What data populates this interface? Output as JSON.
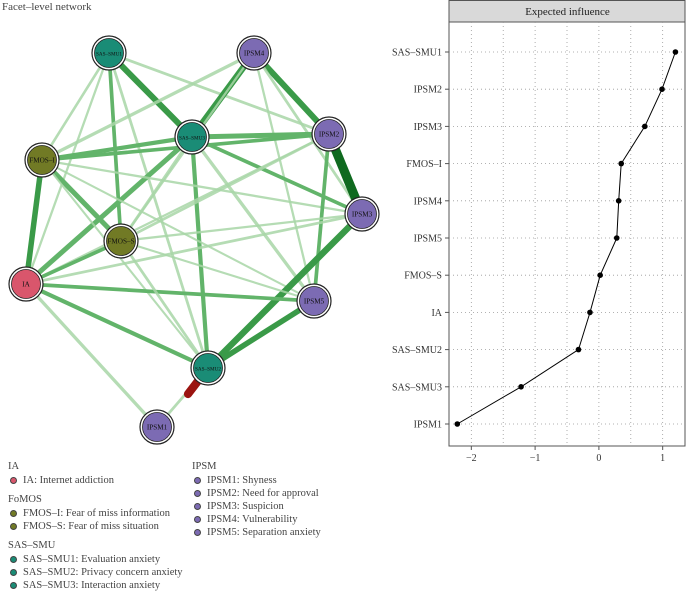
{
  "network": {
    "title": "Facet–level network",
    "node_colors": {
      "IA": "#d9566c",
      "FoMOS": "#717a25",
      "SAS-SMU": "#1a8c76",
      "IPSM": "#7c6bb3"
    },
    "nodes": [
      {
        "id": "SAS-SMU1",
        "label": "SAS–SMU1",
        "group": "SAS-SMU"
      },
      {
        "id": "IPSM4",
        "label": "IPSM4",
        "group": "IPSM"
      },
      {
        "id": "SAS-SMU3",
        "label": "SAS–SMU3",
        "group": "SAS-SMU"
      },
      {
        "id": "IPSM2",
        "label": "IPSM2",
        "group": "IPSM"
      },
      {
        "id": "FMOS-I",
        "label": "FMOS–I",
        "group": "FoMOS"
      },
      {
        "id": "IPSM3",
        "label": "IPSM3",
        "group": "IPSM"
      },
      {
        "id": "FMOS-S",
        "label": "FMOS–S",
        "group": "FoMOS"
      },
      {
        "id": "IA",
        "label": "IA",
        "group": "IA"
      },
      {
        "id": "IPSM5",
        "label": "IPSM5",
        "group": "IPSM"
      },
      {
        "id": "SAS-SMU2",
        "label": "SAS–SMU2",
        "group": "SAS-SMU"
      },
      {
        "id": "IPSM1",
        "label": "IPSM1",
        "group": "IPSM"
      }
    ],
    "edges": [
      {
        "from": "SAS-SMU1",
        "to": "SAS-SMU3",
        "weight": 0.55,
        "sign": "positive"
      },
      {
        "from": "SAS-SMU1",
        "to": "FMOS-I",
        "weight": 0.18,
        "sign": "positive"
      },
      {
        "from": "SAS-SMU1",
        "to": "FMOS-S",
        "weight": 0.3,
        "sign": "positive"
      },
      {
        "from": "SAS-SMU1",
        "to": "IA",
        "weight": 0.15,
        "sign": "positive"
      },
      {
        "from": "SAS-SMU1",
        "to": "IPSM2",
        "weight": 0.2,
        "sign": "positive"
      },
      {
        "from": "SAS-SMU1",
        "to": "SAS-SMU2",
        "weight": 0.2,
        "sign": "positive"
      },
      {
        "from": "IPSM4",
        "to": "SAS-SMU3",
        "weight": 0.6,
        "sign": "positive"
      },
      {
        "from": "IPSM4",
        "to": "IPSM2",
        "weight": 0.55,
        "sign": "positive"
      },
      {
        "from": "IPSM4",
        "to": "FMOS-I",
        "weight": 0.25,
        "sign": "positive"
      },
      {
        "from": "IPSM4",
        "to": "IPSM3",
        "weight": 0.2,
        "sign": "positive"
      },
      {
        "from": "IPSM4",
        "to": "IPSM5",
        "weight": 0.15,
        "sign": "positive"
      },
      {
        "from": "IPSM4",
        "to": "FMOS-S",
        "weight": 0.15,
        "sign": "positive"
      },
      {
        "from": "SAS-SMU3",
        "to": "IPSM2",
        "weight": 0.45,
        "sign": "positive"
      },
      {
        "from": "SAS-SMU3",
        "to": "FMOS-I",
        "weight": 0.35,
        "sign": "positive"
      },
      {
        "from": "SAS-SMU3",
        "to": "IA",
        "weight": 0.45,
        "sign": "positive"
      },
      {
        "from": "SAS-SMU3",
        "to": "IPSM3",
        "weight": 0.3,
        "sign": "positive"
      },
      {
        "from": "SAS-SMU3",
        "to": "IPSM5",
        "weight": 0.25,
        "sign": "positive"
      },
      {
        "from": "SAS-SMU3",
        "to": "SAS-SMU2",
        "weight": 0.35,
        "sign": "positive"
      },
      {
        "from": "SAS-SMU3",
        "to": "FMOS-S",
        "weight": 0.2,
        "sign": "positive"
      },
      {
        "from": "FMOS-I",
        "to": "FMOS-S",
        "weight": 0.45,
        "sign": "positive"
      },
      {
        "from": "FMOS-I",
        "to": "IA",
        "weight": 0.5,
        "sign": "positive"
      },
      {
        "from": "FMOS-I",
        "to": "IPSM2",
        "weight": 0.3,
        "sign": "positive"
      },
      {
        "from": "FMOS-I",
        "to": "IPSM3",
        "weight": 0.15,
        "sign": "positive"
      },
      {
        "from": "FMOS-I",
        "to": "IPSM5",
        "weight": 0.12,
        "sign": "positive"
      },
      {
        "from": "FMOS-I",
        "to": "SAS-SMU2",
        "weight": 0.12,
        "sign": "positive"
      },
      {
        "from": "IPSM2",
        "to": "IPSM3",
        "weight": 0.9,
        "sign": "positive"
      },
      {
        "from": "IPSM2",
        "to": "IPSM5",
        "weight": 0.3,
        "sign": "positive"
      },
      {
        "from": "IPSM2",
        "to": "FMOS-S",
        "weight": 0.2,
        "sign": "positive"
      },
      {
        "from": "IPSM2",
        "to": "IA",
        "weight": 0.15,
        "sign": "positive"
      },
      {
        "from": "IPSM3",
        "to": "SAS-SMU2",
        "weight": 0.6,
        "sign": "positive"
      },
      {
        "from": "IPSM3",
        "to": "FMOS-S",
        "weight": 0.15,
        "sign": "positive"
      },
      {
        "from": "IPSM3",
        "to": "IA",
        "weight": 0.2,
        "sign": "positive"
      },
      {
        "from": "IPSM5",
        "to": "SAS-SMU2",
        "weight": 0.5,
        "sign": "positive"
      },
      {
        "from": "IPSM5",
        "to": "IA",
        "weight": 0.3,
        "sign": "positive"
      },
      {
        "from": "IPSM5",
        "to": "FMOS-S",
        "weight": 0.12,
        "sign": "positive"
      },
      {
        "from": "FMOS-S",
        "to": "IA",
        "weight": 0.3,
        "sign": "positive"
      },
      {
        "from": "FMOS-S",
        "to": "SAS-SMU2",
        "weight": 0.2,
        "sign": "positive"
      },
      {
        "from": "IA",
        "to": "SAS-SMU2",
        "weight": 0.35,
        "sign": "positive"
      },
      {
        "from": "SAS-SMU2",
        "to": "IPSM1",
        "weight": 0.2,
        "sign": "positive"
      },
      {
        "from": "IA",
        "to": "IPSM1",
        "weight": 0.25,
        "sign": "positive"
      },
      {
        "from": "SAS-SMU2",
        "to": "stub",
        "weight": 0.8,
        "sign": "negative"
      }
    ]
  },
  "legend": {
    "groups": [
      {
        "title": "IA",
        "color": "#d9566c",
        "items": [
          "IA: Internet addiction"
        ]
      },
      {
        "title": "FoMOS",
        "color": "#717a25",
        "items": [
          "FMOS–I: Fear of miss information",
          "FMOS–S: Fear of miss situation"
        ]
      },
      {
        "title": "SAS–SMU",
        "color": "#1a8c76",
        "items": [
          "SAS–SMU1: Evaluation anxiety",
          "SAS–SMU2: Privacy concern anxiety",
          "SAS–SMU3: Interaction anxiety"
        ]
      },
      {
        "title": "IPSM",
        "color": "#7c6bb3",
        "items": [
          "IPSM1: Shyness",
          "IPSM2: Need for approval",
          "IPSM3: Suspicion",
          "IPSM4: Vulnerability",
          "IPSM5: Separation anxiety"
        ]
      }
    ]
  },
  "chart_data": {
    "type": "line",
    "title": "Expected influence",
    "categories": [
      "SAS–SMU1",
      "IPSM2",
      "IPSM3",
      "FMOS–I",
      "IPSM4",
      "IPSM5",
      "FMOS–S",
      "IA",
      "SAS–SMU2",
      "SAS–SMU3",
      "IPSM1"
    ],
    "values": [
      1.2,
      0.99,
      0.72,
      0.35,
      0.31,
      0.28,
      0.02,
      -0.14,
      -0.32,
      -1.22,
      -2.22
    ],
    "xlim": [
      -2.35,
      1.35
    ],
    "xticks": [
      -2,
      -1,
      0,
      1
    ],
    "xtick_labels": [
      "−2",
      "−1",
      "0",
      "1"
    ],
    "grid": true,
    "line_color": "#000000"
  }
}
